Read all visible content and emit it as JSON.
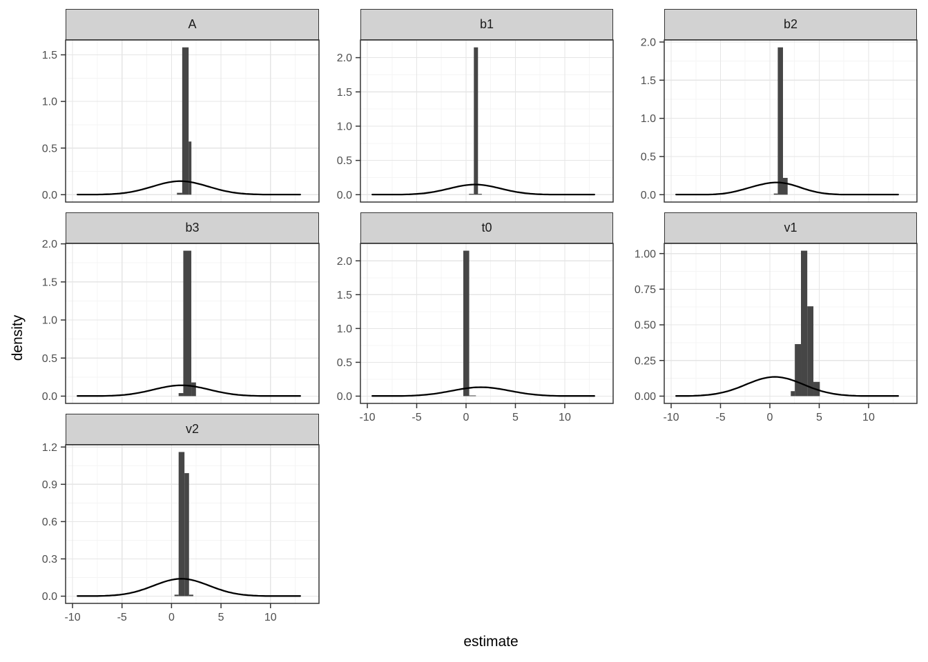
{
  "figure": {
    "xlabel": "estimate",
    "ylabel": "density"
  },
  "chart_data": {
    "type": "histogram+density, faceted (facet_wrap, free y scales)",
    "facets": [
      "A",
      "b1",
      "b2",
      "b3",
      "t0",
      "v1",
      "v2"
    ],
    "xlabel": "estimate",
    "ylabel": "density",
    "x_axis": {
      "ticks": [
        -10,
        -5,
        0,
        5,
        10
      ],
      "tick_labels": [
        "-10",
        "-5",
        "0",
        "5",
        "10"
      ],
      "minor": [
        -7.5,
        -2.5,
        2.5,
        7.5,
        12.5
      ],
      "lim": [
        -10.7,
        14.9
      ]
    },
    "colors": {
      "bar": "#464646",
      "curve": "#000000",
      "strip_fill": "#d2d2d2",
      "panel_border": "#333333",
      "grid_major": "#e5e5e5",
      "grid_minor": "#f4f4f4",
      "tick_text": "#4d4d4d",
      "background": "#ffffff"
    },
    "panels": [
      {
        "label": "A",
        "row": 0,
        "col": 0,
        "show_x_axis": false,
        "y": {
          "max": 1.58,
          "ticks": [
            0,
            0.5,
            1.0,
            1.5
          ],
          "tick_labels": [
            "0.0",
            "0.5",
            "1.0",
            "1.5"
          ],
          "minor": [
            0.25,
            0.75,
            1.25
          ]
        },
        "bars": [
          [
            0.55,
            1.08,
            0.02
          ],
          [
            1.08,
            1.73,
            1.58
          ],
          [
            1.73,
            2.01,
            0.57
          ]
        ],
        "curve": [
          {
            "mean": 0.9,
            "sd": 2.8,
            "peak": 0.145
          }
        ],
        "curve_range": [
          -9.5,
          13.2
        ]
      },
      {
        "label": "b1",
        "row": 0,
        "col": 1,
        "show_x_axis": false,
        "y": {
          "max": 2.15,
          "ticks": [
            0,
            0.5,
            1.0,
            1.5,
            2.0
          ],
          "tick_labels": [
            "0.0",
            "0.5",
            "1.0",
            "1.5",
            "2.0"
          ],
          "minor": [
            0.25,
            0.75,
            1.25,
            1.75,
            2.25
          ]
        },
        "bars": [
          [
            0.3,
            0.79,
            0.012
          ],
          [
            0.79,
            1.21,
            2.15
          ],
          [
            1.21,
            1.6,
            0.012
          ]
        ],
        "curve": [
          {
            "mean": 0.9,
            "sd": 2.6,
            "peak": 0.148
          }
        ],
        "curve_range": [
          -9.5,
          13.2
        ]
      },
      {
        "label": "b2",
        "row": 0,
        "col": 2,
        "show_x_axis": false,
        "y": {
          "max": 1.93,
          "ticks": [
            0,
            0.5,
            1.0,
            1.5,
            2.0
          ],
          "tick_labels": [
            "0.0",
            "0.5",
            "1.0",
            "1.5",
            "2.0"
          ],
          "minor": [
            0.25,
            0.75,
            1.25,
            1.75
          ]
        },
        "bars": [
          [
            0.4,
            0.8,
            0.015
          ],
          [
            0.8,
            1.33,
            1.93
          ],
          [
            1.33,
            1.8,
            0.22
          ]
        ],
        "curve": [
          {
            "mean": 0.9,
            "sd": 2.2,
            "peak": 0.155
          },
          {
            "mean": -2.2,
            "sd": 1.6,
            "peak": 0.03
          }
        ],
        "curve_range": [
          -9.5,
          13.2
        ]
      },
      {
        "label": "b3",
        "row": 1,
        "col": 0,
        "show_x_axis": false,
        "y": {
          "max": 1.91,
          "ticks": [
            0,
            0.5,
            1.0,
            1.5,
            2.0
          ],
          "tick_labels": [
            "0.0",
            "0.5",
            "1.0",
            "1.5",
            "2.0"
          ],
          "minor": [
            0.25,
            0.75,
            1.25,
            1.75
          ]
        },
        "bars": [
          [
            0.72,
            1.19,
            0.04
          ],
          [
            1.19,
            2.0,
            1.91
          ],
          [
            2.0,
            2.47,
            0.18
          ]
        ],
        "curve": [
          {
            "mean": 1.0,
            "sd": 2.8,
            "peak": 0.142
          }
        ],
        "curve_range": [
          -9.5,
          13.2
        ]
      },
      {
        "label": "t0",
        "row": 1,
        "col": 1,
        "show_x_axis": true,
        "y": {
          "max": 2.15,
          "ticks": [
            0,
            0.5,
            1.0,
            1.5,
            2.0
          ],
          "tick_labels": [
            "0.0",
            "0.5",
            "1.0",
            "1.5",
            "2.0"
          ],
          "minor": [
            0.25,
            0.75,
            1.25,
            1.75,
            2.25
          ]
        },
        "bars": [
          [
            -0.28,
            0.32,
            2.15
          ],
          [
            0.32,
            1.0,
            0.01
          ]
        ],
        "curve": [
          {
            "mean": 1.5,
            "sd": 2.9,
            "peak": 0.132
          }
        ],
        "curve_range": [
          -9.5,
          13.2
        ]
      },
      {
        "label": "v1",
        "row": 1,
        "col": 2,
        "show_x_axis": true,
        "y": {
          "max": 1.02,
          "ticks": [
            0,
            0.25,
            0.5,
            0.75,
            1.0
          ],
          "tick_labels": [
            "0.00",
            "0.25",
            "0.50",
            "0.75",
            "1.00"
          ],
          "minor": [
            0.125,
            0.375,
            0.625,
            0.875
          ]
        },
        "bars": [
          [
            2.12,
            2.53,
            0.035
          ],
          [
            2.53,
            3.15,
            0.365
          ],
          [
            3.15,
            3.79,
            1.02
          ],
          [
            3.79,
            4.41,
            0.63
          ],
          [
            4.41,
            5.06,
            0.1
          ]
        ],
        "curve": [
          {
            "mean": 0.5,
            "sd": 2.9,
            "peak": 0.135
          }
        ],
        "curve_range": [
          -9.5,
          13.2
        ]
      },
      {
        "label": "v2",
        "row": 2,
        "col": 0,
        "show_x_axis": true,
        "y": {
          "max": 1.16,
          "ticks": [
            0,
            0.3,
            0.6,
            0.9,
            1.2
          ],
          "tick_labels": [
            "0.0",
            "0.3",
            "0.6",
            "0.9",
            "1.2"
          ],
          "minor": [
            0.15,
            0.45,
            0.75,
            1.05
          ]
        },
        "bars": [
          [
            0.3,
            0.72,
            0.012
          ],
          [
            0.72,
            1.31,
            1.16
          ],
          [
            1.31,
            1.77,
            0.99
          ],
          [
            1.77,
            2.2,
            0.012
          ]
        ],
        "curve": [
          {
            "mean": 1.0,
            "sd": 2.8,
            "peak": 0.14
          }
        ],
        "curve_range": [
          -9.5,
          13.2
        ]
      }
    ]
  }
}
